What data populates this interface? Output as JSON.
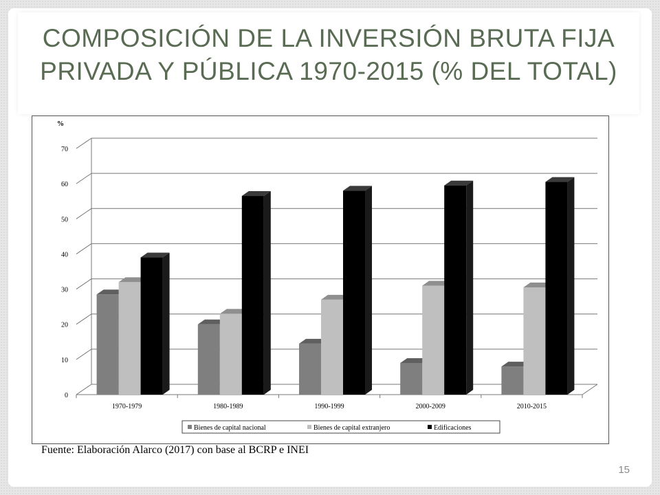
{
  "slide": {
    "title": "COMPOSICIÓN DE LA INVERSIÓN BRUTA FIJA PRIVADA Y PÚBLICA 1970-2015 (% DEL TOTAL)",
    "source": "Fuente: Elaboración Alarco (2017) con base al BCRP e INEI",
    "page_number": "15"
  },
  "colors": {
    "title": "#5a6b54",
    "series": [
      "#7f7f7f",
      "#bfbfbf",
      "#000000"
    ]
  },
  "chart_data": {
    "type": "bar",
    "style": "3d-clustered-column",
    "ylabel": "%",
    "ylim": [
      0,
      70
    ],
    "yticks": [
      "0",
      "10",
      "20",
      "30",
      "40",
      "50",
      "60",
      "70"
    ],
    "categories": [
      "1970-1979",
      "1980-1989",
      "1990-1999",
      "2000-2009",
      "2010-2015"
    ],
    "series": [
      {
        "name": "Bienes de capital nacional",
        "values": [
          28.5,
          20,
          14.5,
          9,
          8
        ]
      },
      {
        "name": "Bienes de capital extranjero",
        "values": [
          32,
          23,
          27,
          31,
          30.5
        ]
      },
      {
        "name": "Edificaciones",
        "values": [
          39,
          56.5,
          58,
          59.5,
          60.5
        ]
      }
    ],
    "grid": true,
    "legend": "bottom"
  }
}
